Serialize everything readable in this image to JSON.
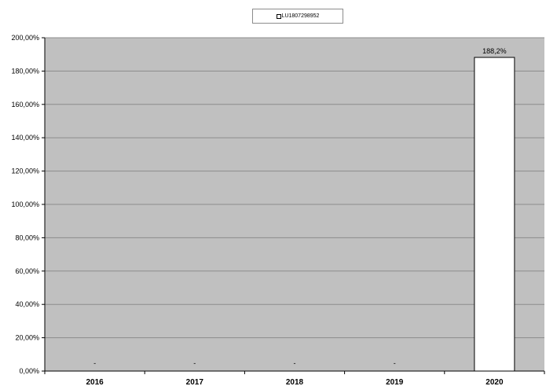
{
  "chart_data": {
    "type": "bar",
    "categories": [
      "2016",
      "2017",
      "2018",
      "2019",
      "2020"
    ],
    "series": [
      {
        "name": "LU1807298952",
        "values": [
          null,
          null,
          null,
          null,
          188.2
        ]
      }
    ],
    "data_labels": [
      "-",
      "-",
      "-",
      "-",
      "188,2%"
    ],
    "y_ticks": [
      "0,00%",
      "20,00%",
      "40,00%",
      "60,00%",
      "80,00%",
      "100,00%",
      "120,00%",
      "140,00%",
      "160,00%",
      "180,00%",
      "200,00%"
    ],
    "ylim": [
      0,
      200
    ],
    "grid": true,
    "legend_position": "top-center",
    "colors": {
      "plot_background": "#c0c0c0",
      "bar_fill": "#ffffff",
      "bar_stroke": "#000000",
      "gridline": "#8c8c8c"
    }
  }
}
